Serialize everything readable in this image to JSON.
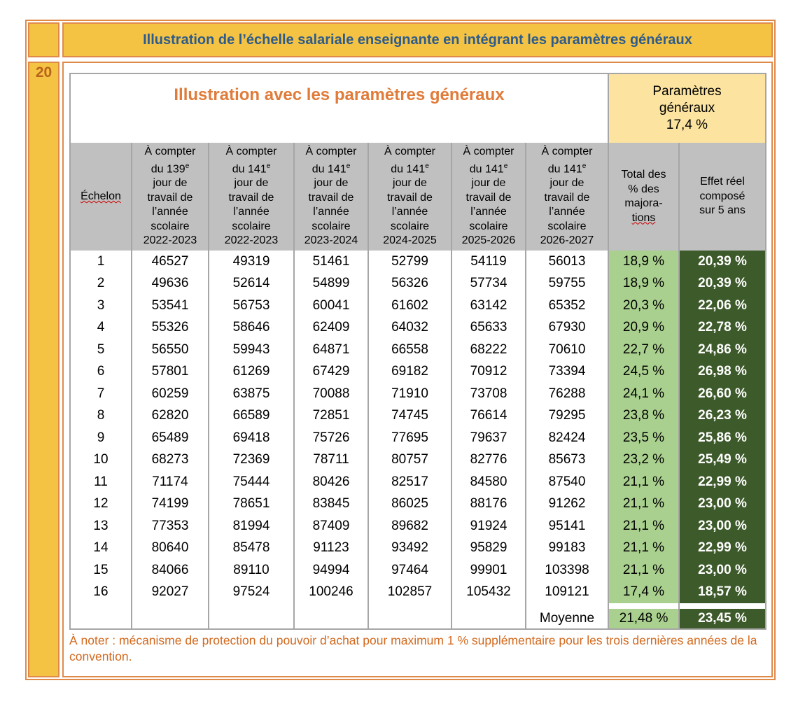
{
  "section_number": "20",
  "header_title": "Illustration de l’échelle salariale enseignante en intégrant les paramètres généraux",
  "table": {
    "title": "Illustration avec les paramètres généraux",
    "params": {
      "line1": "Paramètres",
      "line2": "généraux",
      "value": "17,4 %"
    },
    "columns": [
      {
        "label": "Échelon"
      },
      {
        "lines": [
          "À compter",
          "du 139",
          "jour de",
          "travail de",
          "l’année",
          "scolaire",
          "2022-2023"
        ]
      },
      {
        "lines": [
          "À compter",
          "du 141",
          "jour de",
          "travail de",
          "l’année",
          "scolaire",
          "2022-2023"
        ]
      },
      {
        "lines": [
          "À compter",
          "du 141",
          "jour de",
          "travail de",
          "l’année",
          "scolaire",
          "2023-2024"
        ]
      },
      {
        "lines": [
          "À compter",
          "du 141",
          "jour de",
          "travail de",
          "l’année",
          "scolaire",
          "2024-2025"
        ]
      },
      {
        "lines": [
          "À compter",
          "du 141",
          "jour de",
          "travail de",
          "l’année",
          "scolaire",
          "2025-2026"
        ]
      },
      {
        "lines": [
          "À compter",
          "du 141",
          "jour de",
          "travail de",
          "l’année",
          "scolaire",
          "2026-2027"
        ]
      },
      {
        "lines": [
          "Total des",
          "% des",
          "majora-",
          "tions"
        ]
      },
      {
        "lines": [
          "Effet réel",
          "composé",
          "sur 5 ans"
        ]
      }
    ],
    "superscript": "e",
    "rows": [
      [
        "1",
        "46527",
        "49319",
        "51461",
        "52799",
        "54119",
        "56013",
        "18,9 %",
        "20,39 %"
      ],
      [
        "2",
        "49636",
        "52614",
        "54899",
        "56326",
        "57734",
        "59755",
        "18,9 %",
        "20,39 %"
      ],
      [
        "3",
        "53541",
        "56753",
        "60041",
        "61602",
        "63142",
        "65352",
        "20,3 %",
        "22,06 %"
      ],
      [
        "4",
        "55326",
        "58646",
        "62409",
        "64032",
        "65633",
        "67930",
        "20,9 %",
        "22,78 %"
      ],
      [
        "5",
        "56550",
        "59943",
        "64871",
        "66558",
        "68222",
        "70610",
        "22,7 %",
        "24,86 %"
      ],
      [
        "6",
        "57801",
        "61269",
        "67429",
        "69182",
        "70912",
        "73394",
        "24,5 %",
        "26,98 %"
      ],
      [
        "7",
        "60259",
        "63875",
        "70088",
        "71910",
        "73708",
        "76288",
        "24,1 %",
        "26,60 %"
      ],
      [
        "8",
        "62820",
        "66589",
        "72851",
        "74745",
        "76614",
        "79295",
        "23,8 %",
        "26,23 %"
      ],
      [
        "9",
        "65489",
        "69418",
        "75726",
        "77695",
        "79637",
        "82424",
        "23,5 %",
        "25,86 %"
      ],
      [
        "10",
        "68273",
        "72369",
        "78711",
        "80757",
        "82776",
        "85673",
        "23,2 %",
        "25,49 %"
      ],
      [
        "11",
        "71174",
        "75444",
        "80426",
        "82517",
        "84580",
        "87540",
        "21,1 %",
        "22,99 %"
      ],
      [
        "12",
        "74199",
        "78651",
        "83845",
        "86025",
        "88176",
        "91262",
        "21,1 %",
        "23,00 %"
      ],
      [
        "13",
        "77353",
        "81994",
        "87409",
        "89682",
        "91924",
        "95141",
        "21,1 %",
        "23,00 %"
      ],
      [
        "14",
        "80640",
        "85478",
        "91123",
        "93492",
        "95829",
        "99183",
        "21,1 %",
        "22,99 %"
      ],
      [
        "15",
        "84066",
        "89110",
        "94994",
        "97464",
        "99901",
        "103398",
        "21,1 %",
        "23,00 %"
      ],
      [
        "16",
        "92027",
        "97524",
        "100246",
        "102857",
        "105432",
        "109121",
        "17,4 %",
        "18,57 %"
      ]
    ],
    "average": {
      "label": "Moyenne",
      "total": "21,48 %",
      "effet": "23,45 %"
    }
  },
  "note": "À noter : mécanisme de protection du pouvoir d’achat pour maximum 1 % supplémentaire pour les trois dernières années de la convention.",
  "colors": {
    "yellow": "#f5c343",
    "orange_border": "#e08a4a",
    "blue_title": "#2e5b8a",
    "orange_title": "#e07b39",
    "param_bg": "#fce4a0",
    "header_gray": "#c0c0c0",
    "light_green": "#a9d08e",
    "dark_green": "#3d5a2a"
  }
}
